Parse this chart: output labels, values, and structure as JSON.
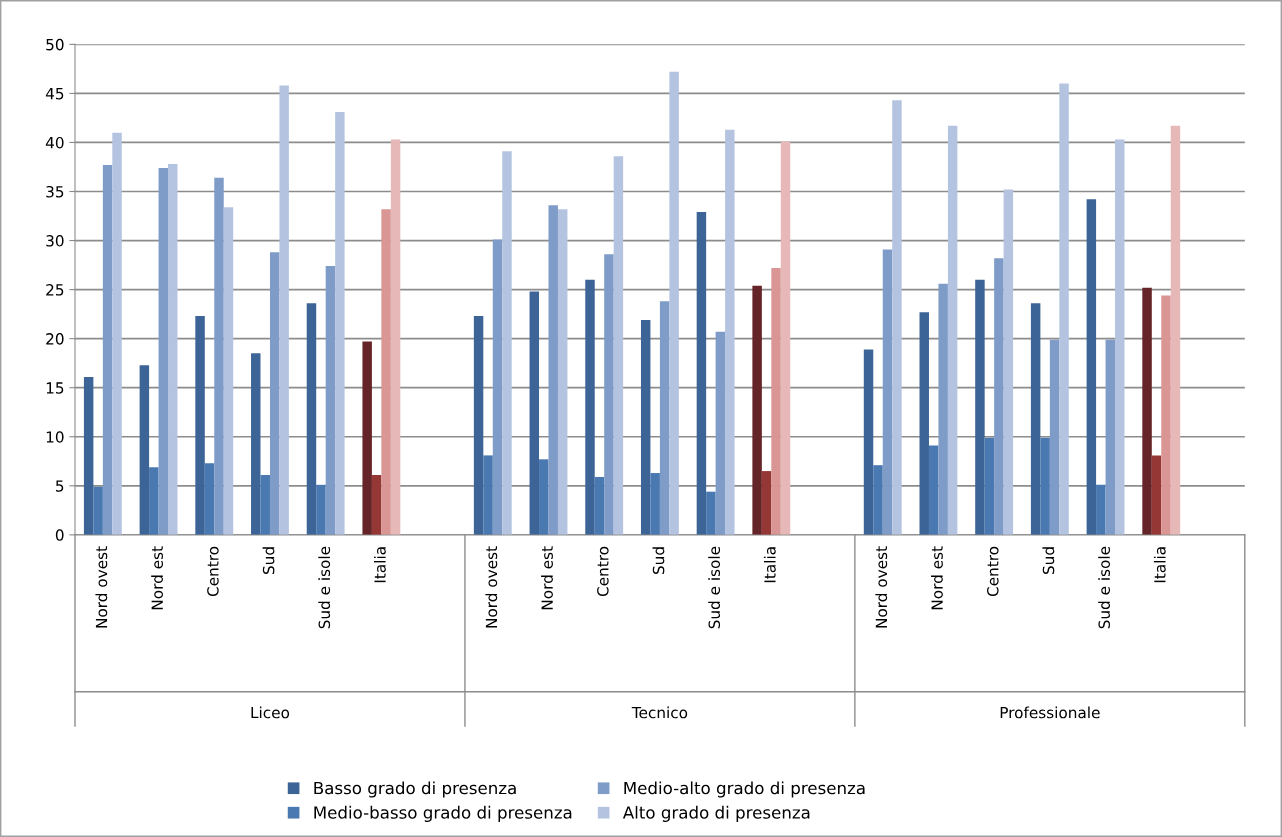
{
  "chart_data": {
    "type": "bar",
    "categories": [
      "Nord ovest",
      "Nord est",
      "Centro",
      "Sud",
      "Sud e isole",
      "Italia",
      null,
      "Nord ovest",
      "Nord est",
      "Centro",
      "Sud",
      "Sud e isole",
      "Italia",
      null,
      "Nord ovest",
      "Nord est",
      "Centro",
      "Sud",
      "Sud e isole",
      "Italia",
      null
    ],
    "series": [
      {
        "name": "Basso grado di presenza",
        "color": "#3c6496",
        "colors": [
          "#3c6496",
          "#3c6496",
          "#3c6496",
          "#3c6496",
          "#3c6496",
          "#652427",
          "#3c6496",
          "#3c6496",
          "#3c6496",
          "#3c6496",
          "#3c6496",
          "#3c6496",
          "#652427",
          "#3c6496",
          "#3c6496",
          "#3c6496",
          "#3c6496",
          "#3c6496",
          "#3c6496",
          "#652427",
          "#3c6496"
        ],
        "values": [
          16.1,
          17.3,
          22.3,
          18.5,
          23.6,
          19.7,
          null,
          22.3,
          24.8,
          26.0,
          21.9,
          32.9,
          25.4,
          null,
          18.9,
          22.7,
          26.0,
          23.6,
          34.2,
          25.2,
          null
        ]
      },
      {
        "name": "Medio-basso grado di presenza",
        "color": "#4a78b0",
        "colors": [
          "#4a78b0",
          "#4a78b0",
          "#4a78b0",
          "#4a78b0",
          "#4a78b0",
          "#953735",
          "#4a78b0",
          "#4a78b0",
          "#4a78b0",
          "#4a78b0",
          "#4a78b0",
          "#4a78b0",
          "#953735",
          "#4a78b0",
          "#4a78b0",
          "#4a78b0",
          "#4a78b0",
          "#4a78b0",
          "#4a78b0",
          "#953735",
          "#4a78b0"
        ],
        "values": [
          4.9,
          6.9,
          7.3,
          6.1,
          5.1,
          6.1,
          null,
          8.1,
          7.7,
          5.9,
          6.3,
          4.4,
          6.5,
          null,
          7.1,
          9.1,
          9.9,
          9.9,
          5.1,
          8.1,
          null
        ]
      },
      {
        "name": "Medio-alto grado di presenza",
        "color": "#7f9cc8",
        "colors": [
          "#7f9cc8",
          "#7f9cc8",
          "#7f9cc8",
          "#7f9cc8",
          "#7f9cc8",
          "#d99694",
          "#7f9cc8",
          "#7f9cc8",
          "#7f9cc8",
          "#7f9cc8",
          "#7f9cc8",
          "#7f9cc8",
          "#d99694",
          "#7f9cc8",
          "#7f9cc8",
          "#7f9cc8",
          "#7f9cc8",
          "#7f9cc8",
          "#7f9cc8",
          "#d99694",
          "#7f9cc8"
        ],
        "values": [
          37.7,
          37.4,
          36.4,
          28.8,
          27.4,
          33.2,
          null,
          30.1,
          33.6,
          28.6,
          23.8,
          20.7,
          27.2,
          null,
          29.1,
          25.6,
          28.2,
          19.9,
          19.9,
          24.4,
          null
        ]
      },
      {
        "name": "Alto grado di presenza",
        "color": "#b4c4e0",
        "colors": [
          "#b4c4e0",
          "#b4c4e0",
          "#b4c4e0",
          "#b4c4e0",
          "#b4c4e0",
          "#e6b9b8",
          "#b4c4e0",
          "#b4c4e0",
          "#b4c4e0",
          "#b4c4e0",
          "#b4c4e0",
          "#b4c4e0",
          "#e6b9b8",
          "#b4c4e0",
          "#b4c4e0",
          "#b4c4e0",
          "#b4c4e0",
          "#b4c4e0",
          "#b4c4e0",
          "#e6b9b8",
          "#b4c4e0"
        ],
        "values": [
          41.0,
          37.8,
          33.4,
          45.8,
          43.1,
          40.3,
          null,
          39.1,
          33.2,
          38.6,
          47.2,
          41.3,
          40.1,
          null,
          44.3,
          41.7,
          35.2,
          46.0,
          40.3,
          41.7,
          null
        ]
      }
    ],
    "annotations": [
      "Liceo",
      "Tecnico",
      "Professionale"
    ],
    "ylim": [
      0,
      50
    ],
    "yticks": [
      0,
      5,
      10,
      15,
      20,
      25,
      30,
      35,
      40,
      45,
      50
    ],
    "grid": "y",
    "legend": "bottom"
  }
}
